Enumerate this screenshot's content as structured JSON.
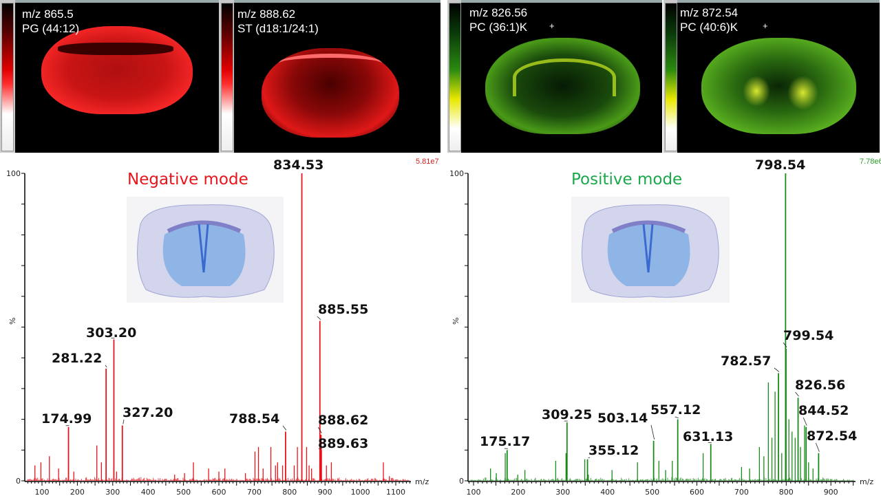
{
  "images": {
    "negative": [
      {
        "mz_label": "m/z 865.5",
        "lipid_label": "PG (44:12)"
      },
      {
        "mz_label": "m/z 888.62",
        "lipid_label": "ST (d18:1/24:1)"
      }
    ],
    "positive": [
      {
        "mz_label": "m/z 826.56",
        "lipid_label": "PC (36:1)K",
        "marker": "+"
      },
      {
        "mz_label": "m/z 872.54",
        "lipid_label": "PC (40:6)K",
        "marker": "+"
      }
    ]
  },
  "colors": {
    "negative": "#e8141b",
    "positive": "#1a8a1a",
    "nissl": "#3a7bd5"
  },
  "chart_data": [
    {
      "type": "bar",
      "title": "Negative mode",
      "max_intensity": "5.81e7",
      "xlabel": "m/z",
      "ylabel": "%",
      "xlim": [
        51,
        1143
      ],
      "ylim": [
        0,
        100
      ],
      "xticks": [
        100,
        200,
        300,
        400,
        500,
        600,
        700,
        800,
        900,
        1000,
        1100
      ],
      "yticks": [
        0,
        100
      ],
      "labeled_peaks": [
        {
          "mz": 834.53,
          "intensity": 100
        },
        {
          "mz": 885.55,
          "intensity": 52
        },
        {
          "mz": 303.2,
          "intensity": 46
        },
        {
          "mz": 281.22,
          "intensity": 36.5
        },
        {
          "mz": 174.99,
          "intensity": 17.5
        },
        {
          "mz": 327.2,
          "intensity": 18
        },
        {
          "mz": 788.54,
          "intensity": 16
        },
        {
          "mz": 888.62,
          "intensity": 15
        },
        {
          "mz": 889.63,
          "intensity": 10
        }
      ],
      "minor_peaks": [
        [
          80,
          5
        ],
        [
          97,
          6
        ],
        [
          121,
          8
        ],
        [
          147,
          4
        ],
        [
          190,
          3
        ],
        [
          255,
          11.5
        ],
        [
          268,
          6
        ],
        [
          311,
          3
        ],
        [
          475,
          2
        ],
        [
          503,
          2.5
        ],
        [
          528,
          6
        ],
        [
          571,
          4
        ],
        [
          600,
          3
        ],
        [
          617,
          4
        ],
        [
          675,
          2.5
        ],
        [
          702,
          9.5
        ],
        [
          712,
          11
        ],
        [
          725,
          4
        ],
        [
          747,
          11
        ],
        [
          760,
          5
        ],
        [
          766,
          6
        ],
        [
          780,
          5
        ],
        [
          813,
          5
        ],
        [
          822,
          11
        ],
        [
          848,
          11
        ],
        [
          855,
          5
        ],
        [
          862,
          4
        ],
        [
          904,
          5
        ],
        [
          918,
          6
        ],
        [
          1065,
          6
        ],
        [
          1082,
          1.5
        ]
      ]
    },
    {
      "type": "bar",
      "title": "Positive mode",
      "max_intensity": "7.78e6",
      "xlabel": "m/z",
      "ylabel": "%",
      "xlim": [
        88,
        956
      ],
      "ylim": [
        0,
        100
      ],
      "xticks": [
        100,
        200,
        300,
        400,
        500,
        600,
        700,
        800,
        900
      ],
      "yticks": [
        0,
        100
      ],
      "labeled_peaks": [
        {
          "mz": 798.54,
          "intensity": 100
        },
        {
          "mz": 799.54,
          "intensity": 43
        },
        {
          "mz": 782.57,
          "intensity": 35
        },
        {
          "mz": 826.56,
          "intensity": 27
        },
        {
          "mz": 844.52,
          "intensity": 17.5
        },
        {
          "mz": 872.54,
          "intensity": 9
        },
        {
          "mz": 557.12,
          "intensity": 20
        },
        {
          "mz": 503.14,
          "intensity": 13
        },
        {
          "mz": 631.13,
          "intensity": 12
        },
        {
          "mz": 309.25,
          "intensity": 19
        },
        {
          "mz": 355.12,
          "intensity": 7
        },
        {
          "mz": 175.17,
          "intensity": 10
        }
      ],
      "minor_peaks": [
        [
          138,
          4
        ],
        [
          151,
          2.5
        ],
        [
          171,
          9
        ],
        [
          199,
          2
        ],
        [
          215,
          3.5
        ],
        [
          284,
          6.5
        ],
        [
          307,
          9
        ],
        [
          349,
          7
        ],
        [
          357,
          2
        ],
        [
          410,
          3.5
        ],
        [
          467,
          6
        ],
        [
          515,
          6.5
        ],
        [
          530,
          3.5
        ],
        [
          545,
          6.5
        ],
        [
          614,
          9
        ],
        [
          700,
          4.5
        ],
        [
          718,
          4
        ],
        [
          740,
          11
        ],
        [
          750,
          8
        ],
        [
          760,
          32
        ],
        [
          768,
          14
        ],
        [
          775,
          29
        ],
        [
          790,
          9
        ],
        [
          806,
          20
        ],
        [
          813,
          16
        ],
        [
          820,
          14
        ],
        [
          832,
          11
        ],
        [
          841,
          18
        ],
        [
          850,
          6
        ],
        [
          860,
          4
        ]
      ]
    }
  ]
}
